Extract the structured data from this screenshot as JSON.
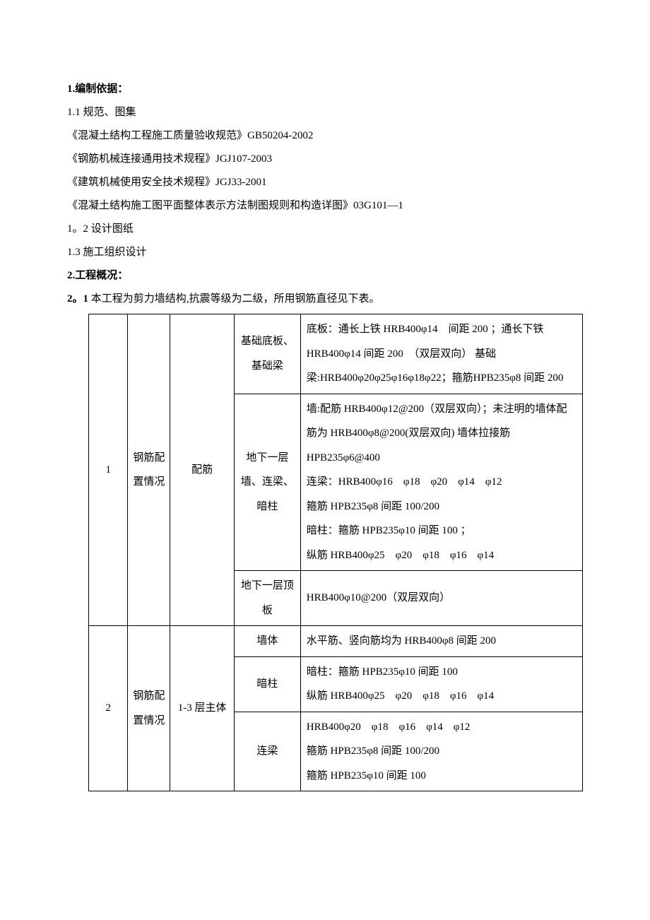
{
  "section1": {
    "heading": "1.编制依据：",
    "line1": "1.1 规范、图集",
    "line2": "《混凝土结构工程施工质量验收规范》GB50204-2002",
    "line3": "《钢筋机械连接通用技术规程》JGJ107-2003",
    "line4": "《建筑机械使用安全技术规程》JGJ33-2001",
    "line5": "《混凝土结构施工图平面整体表示方法制图规则和构造详图》03G101—1",
    "line6": "1。2 设计图纸",
    "line7": "1.3 施工组织设计"
  },
  "section2": {
    "heading": "2.工程概况：",
    "intro_bold": "2。1",
    "intro_rest": " 本工程为剪力墙结构,抗震等级为二级，所用钢筋直径见下表。"
  },
  "table": {
    "row1": {
      "idx": "1",
      "cat": "钢筋配置情况",
      "sub": "配筋",
      "cells": [
        {
          "part": "基础底板、基础梁",
          "desc": "底板：通长上铁 HRB400φ14　间距 200 ；通长下铁 HRB400φ14 间距 200　（双层双向） 基础梁:HRB400φ20φ25φ16φ18φ22；箍筋HPB235φ8 间距 200"
        },
        {
          "part": "地下一层墙、连梁、暗柱",
          "desc": "墙:配筋 HRB400φ12@200（双层双向）；未注明的墙体配筋为 HRB400φ8@200(双层双向) 墙体拉接筋 HPB235φ6@400\n连梁：HRB400φ16　φ18　φ20　φ14　φ12\n箍筋 HPB235φ8 间距 100/200\n暗柱：箍筋 HPB235φ10 间距 100 ；\n纵筋 HRB400φ25　φ20　φ18　φ16　φ14"
        },
        {
          "part": "地下一层顶板",
          "desc": "HRB400φ10@200（双层双向）"
        }
      ]
    },
    "row2": {
      "idx": "2",
      "cat": "钢筋配置情况",
      "sub": "1-3 层主体",
      "cells": [
        {
          "part": "墙体",
          "desc": "水平筋、竖向筋均为 HRB400φ8 间距 200"
        },
        {
          "part": "暗柱",
          "desc": "暗柱：箍筋 HPB235φ10 间距 100\n纵筋 HRB400φ25　φ20　φ18　φ16　φ14"
        },
        {
          "part": "连梁",
          "desc": "HRB400φ20　φ18　φ16　φ14　φ12\n箍筋 HPB235φ8 间距 100/200\n箍筋 HPB235φ10 间距 100"
        }
      ]
    }
  }
}
